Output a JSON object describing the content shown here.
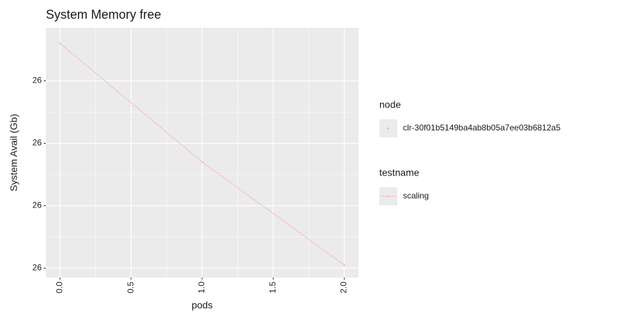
{
  "chart_data": {
    "type": "line",
    "title": "System Memory free",
    "x_label": "pods",
    "y_label": "System Avail (Gb)",
    "x": [
      0,
      1,
      2
    ],
    "series": [
      {
        "name": "scaling",
        "color": "#f6c3bd",
        "values": [
          26.00012,
          25.99974,
          25.99941
        ]
      }
    ],
    "xlim": [
      -0.1,
      2.1
    ],
    "xticks": [
      {
        "value": 0,
        "label": "0.0"
      },
      0.5,
      {
        "value": 1,
        "label": "1.0"
      },
      1.5,
      {
        "value": 2,
        "label": "2.0"
      }
    ],
    "ylim": [
      25.99937,
      26.00017
    ],
    "yticks": [
      {
        "value": 25.9994,
        "label": "26"
      },
      {
        "value": 25.9996,
        "label": "26"
      },
      {
        "value": 25.9998,
        "label": "26"
      },
      26
    ],
    "grid": true,
    "legend": [
      {
        "title": "node",
        "entries": [
          {
            "name": "clr-30f01b5149ba4ab8b05a7ee03b6812a5",
            "color": "#bbbbbb"
          }
        ]
      },
      {
        "title": "testname",
        "entries": [
          {
            "name": "scaling",
            "color": "#f6c3bd"
          }
        ]
      }
    ]
  }
}
